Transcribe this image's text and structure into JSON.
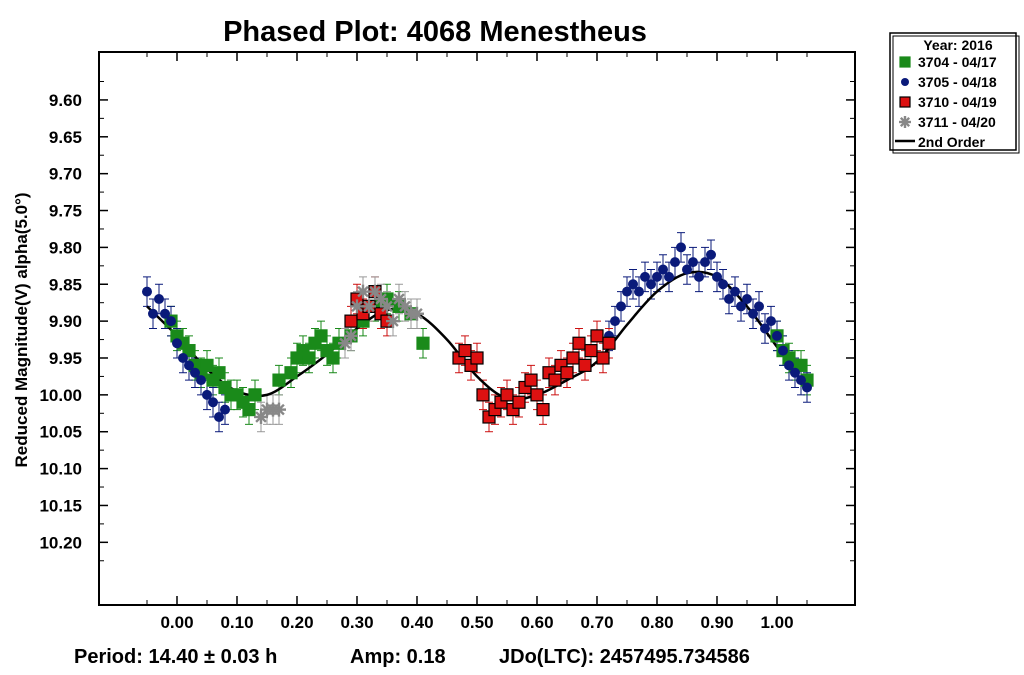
{
  "chart_data": {
    "type": "scatter",
    "title": "Phased Plot: 4068 Menestheus",
    "xlabel": "",
    "ylabel": "Reduced Magnitude(V) alpha(5.0°)",
    "xlim": [
      -0.13,
      1.13
    ],
    "ylim": [
      9.535,
      10.285
    ],
    "y_inverted": true,
    "x_ticks": [
      "0.00",
      "0.10",
      "0.20",
      "0.30",
      "0.40",
      "0.50",
      "0.60",
      "0.70",
      "0.80",
      "0.90",
      "1.00"
    ],
    "y_ticks": [
      "9.60",
      "9.65",
      "9.70",
      "9.75",
      "9.80",
      "9.85",
      "9.90",
      "9.95",
      "10.00",
      "10.05",
      "10.10",
      "10.15",
      "10.20"
    ],
    "footer": {
      "period": "Period: 14.40 ± 0.03 h",
      "amp": "Amp: 0.18",
      "jdo": "JDo(LTC): 2457495.734586"
    },
    "legend": {
      "placement": "top-right-outside",
      "title": "Year: 2016",
      "fit_label": "2nd Order"
    },
    "fit": {
      "name": "2nd Order",
      "color": "#000000",
      "x": [
        -0.05,
        0.0,
        0.05,
        0.1,
        0.15,
        0.2,
        0.25,
        0.3,
        0.35,
        0.4,
        0.45,
        0.5,
        0.55,
        0.6,
        0.65,
        0.7,
        0.75,
        0.8,
        0.85,
        0.9,
        0.95,
        1.0,
        1.05
      ],
      "y": [
        9.88,
        9.92,
        9.965,
        9.995,
        10.0,
        9.975,
        9.945,
        9.91,
        9.885,
        9.89,
        9.925,
        9.975,
        10.005,
        10.0,
        9.98,
        9.955,
        9.905,
        9.86,
        9.835,
        9.84,
        9.88,
        9.935,
        9.99
      ]
    },
    "series": [
      {
        "name": "3704 - 04/17",
        "marker": "square",
        "color": "#1a8a1a",
        "x": [
          -0.01,
          0.0,
          0.01,
          0.02,
          0.03,
          0.04,
          0.05,
          0.06,
          0.07,
          0.08,
          0.09,
          0.1,
          0.11,
          0.12,
          0.13,
          0.17,
          0.19,
          0.2,
          0.21,
          0.22,
          0.23,
          0.24,
          0.25,
          0.26,
          0.27,
          0.29,
          0.31,
          0.33,
          0.35,
          0.37,
          0.39,
          0.41,
          1.0,
          1.01,
          1.02,
          1.03,
          1.04,
          1.05
        ],
        "y": [
          9.9,
          9.92,
          9.93,
          9.94,
          9.96,
          9.97,
          9.96,
          9.98,
          9.97,
          9.99,
          10.0,
          10.0,
          10.01,
          10.02,
          10.0,
          9.98,
          9.97,
          9.95,
          9.94,
          9.95,
          9.93,
          9.92,
          9.94,
          9.95,
          9.93,
          9.92,
          9.9,
          9.88,
          9.87,
          9.88,
          9.89,
          9.93,
          9.92,
          9.94,
          9.95,
          9.96,
          9.96,
          9.98
        ]
      },
      {
        "name": "3705 - 04/18",
        "marker": "circle",
        "color": "#0a1a7a",
        "x": [
          -0.05,
          -0.04,
          -0.03,
          -0.02,
          -0.01,
          0.0,
          0.01,
          0.02,
          0.03,
          0.04,
          0.05,
          0.06,
          0.07,
          0.08,
          0.72,
          0.73,
          0.74,
          0.75,
          0.76,
          0.77,
          0.78,
          0.79,
          0.8,
          0.81,
          0.82,
          0.83,
          0.84,
          0.85,
          0.86,
          0.87,
          0.88,
          0.89,
          0.9,
          0.91,
          0.92,
          0.93,
          0.94,
          0.95,
          0.96,
          0.97,
          0.98,
          0.99,
          1.0,
          1.01,
          1.02,
          1.03,
          1.04,
          1.05
        ],
        "y": [
          9.86,
          9.89,
          9.87,
          9.89,
          9.9,
          9.93,
          9.95,
          9.96,
          9.97,
          9.98,
          10.0,
          10.01,
          10.03,
          10.02,
          9.92,
          9.9,
          9.88,
          9.86,
          9.85,
          9.86,
          9.84,
          9.85,
          9.84,
          9.83,
          9.84,
          9.82,
          9.8,
          9.83,
          9.82,
          9.84,
          9.82,
          9.81,
          9.84,
          9.85,
          9.87,
          9.86,
          9.88,
          9.87,
          9.89,
          9.88,
          9.91,
          9.9,
          9.92,
          9.94,
          9.96,
          9.97,
          9.98,
          9.99
        ]
      },
      {
        "name": "3710 - 04/19",
        "marker": "square",
        "color": "#dd1111",
        "x": [
          0.29,
          0.3,
          0.31,
          0.32,
          0.33,
          0.34,
          0.35,
          0.47,
          0.48,
          0.49,
          0.5,
          0.51,
          0.52,
          0.53,
          0.54,
          0.55,
          0.56,
          0.57,
          0.58,
          0.59,
          0.6,
          0.61,
          0.62,
          0.63,
          0.64,
          0.65,
          0.66,
          0.67,
          0.68,
          0.69,
          0.7,
          0.71,
          0.72
        ],
        "y": [
          9.9,
          9.87,
          9.89,
          9.88,
          9.86,
          9.89,
          9.9,
          9.95,
          9.94,
          9.96,
          9.95,
          10.0,
          10.03,
          10.02,
          10.01,
          10.0,
          10.02,
          10.01,
          9.99,
          9.98,
          10.0,
          10.02,
          9.97,
          9.98,
          9.96,
          9.97,
          9.95,
          9.93,
          9.96,
          9.94,
          9.92,
          9.95,
          9.93
        ]
      },
      {
        "name": "3711 - 04/20",
        "marker": "asterisk",
        "color": "#888888",
        "x": [
          0.14,
          0.15,
          0.16,
          0.17,
          0.28,
          0.29,
          0.3,
          0.31,
          0.32,
          0.33,
          0.34,
          0.35,
          0.36,
          0.37,
          0.38,
          0.39,
          0.4
        ],
        "y": [
          10.03,
          10.02,
          10.02,
          10.02,
          9.93,
          9.92,
          9.88,
          9.86,
          9.88,
          9.86,
          9.87,
          9.88,
          9.9,
          9.87,
          9.88,
          9.89,
          9.89
        ]
      }
    ]
  }
}
